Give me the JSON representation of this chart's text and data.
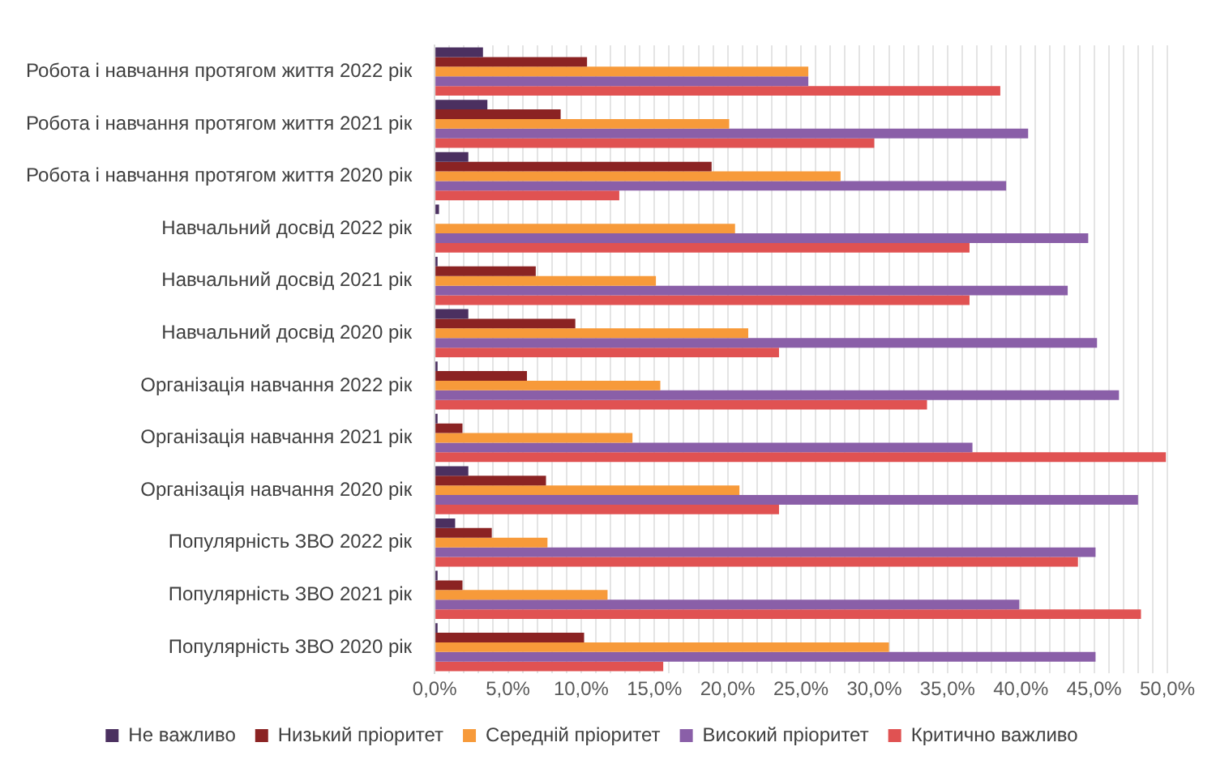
{
  "chart_data": {
    "type": "bar",
    "orientation": "horizontal",
    "categories": [
      "Робота і навчання протягом життя 2022 рік",
      "Робота і навчання протягом життя 2021 рік",
      "Робота і навчання протягом життя 2020 рік",
      "Навчальний досвід 2022 рік",
      "Навчальний досвід 2021 рік",
      "Навчальний досвід 2020 рік",
      "Організація навчання 2022 рік",
      "Організація навчання 2021 рік",
      "Організація навчання 2020 рік",
      "Популярність ЗВО 2022 рік",
      "Популярність ЗВО 2021 рік",
      "Популярність ЗВО 2020 рік"
    ],
    "series": [
      {
        "name": "Не важливо",
        "color": "#4b3060",
        "values": [
          3.3,
          3.6,
          2.3,
          0.3,
          0.2,
          2.3,
          0.2,
          0.2,
          2.3,
          1.4,
          0.2,
          0.2
        ]
      },
      {
        "name": "Низький пріоритет",
        "color": "#8b2323",
        "values": [
          10.4,
          8.6,
          18.9,
          0,
          6.9,
          9.6,
          6.3,
          1.9,
          7.6,
          3.9,
          1.9,
          10.2
        ]
      },
      {
        "name": "Середній пріоритет",
        "color": "#f79a3a",
        "values": [
          25.5,
          20.1,
          27.7,
          20.5,
          15.1,
          21.4,
          15.4,
          13.5,
          20.8,
          7.7,
          11.8,
          31.0
        ]
      },
      {
        "name": "Високий пріоритет",
        "color": "#8a5fa8",
        "values": [
          25.5,
          40.5,
          39.0,
          44.6,
          43.2,
          45.2,
          46.7,
          36.7,
          48.0,
          45.1,
          39.9,
          45.1
        ]
      },
      {
        "name": "Критично важливо",
        "color": "#e05252",
        "values": [
          38.6,
          30.0,
          12.6,
          36.5,
          36.5,
          23.5,
          33.6,
          49.9,
          23.5,
          43.9,
          48.2,
          15.6
        ]
      }
    ],
    "xlim": [
      0,
      50
    ],
    "xticks": [
      {
        "value": 0,
        "label": "0,0%"
      },
      {
        "value": 1,
        "label": null
      },
      {
        "value": 2,
        "label": null
      },
      {
        "value": 3,
        "label": null
      },
      {
        "value": 4,
        "label": null
      },
      {
        "value": 5,
        "label": "5,0%"
      },
      {
        "value": 6,
        "label": null
      },
      {
        "value": 7,
        "label": null
      },
      {
        "value": 8,
        "label": null
      },
      {
        "value": 9,
        "label": null
      },
      {
        "value": 10,
        "label": "10,0%"
      },
      {
        "value": 11,
        "label": null
      },
      {
        "value": 12,
        "label": null
      },
      {
        "value": 13,
        "label": null
      },
      {
        "value": 14,
        "label": null
      },
      {
        "value": 15,
        "label": "15,0%"
      },
      {
        "value": 16,
        "label": null
      },
      {
        "value": 17,
        "label": null
      },
      {
        "value": 18,
        "label": null
      },
      {
        "value": 19,
        "label": null
      },
      {
        "value": 20,
        "label": "20,0%"
      },
      {
        "value": 21,
        "label": null
      },
      {
        "value": 22,
        "label": null
      },
      {
        "value": 23,
        "label": null
      },
      {
        "value": 24,
        "label": null
      },
      {
        "value": 25,
        "label": "25,0%"
      },
      {
        "value": 26,
        "label": null
      },
      {
        "value": 27,
        "label": null
      },
      {
        "value": 28,
        "label": null
      },
      {
        "value": 29,
        "label": null
      },
      {
        "value": 30,
        "label": "30,0%"
      },
      {
        "value": 31,
        "label": null
      },
      {
        "value": 32,
        "label": null
      },
      {
        "value": 33,
        "label": null
      },
      {
        "value": 34,
        "label": null
      },
      {
        "value": 35,
        "label": "35,0%"
      },
      {
        "value": 36,
        "label": null
      },
      {
        "value": 37,
        "label": null
      },
      {
        "value": 38,
        "label": null
      },
      {
        "value": 39,
        "label": null
      },
      {
        "value": 40,
        "label": "40,0%"
      },
      {
        "value": 41,
        "label": null
      },
      {
        "value": 42,
        "label": null
      },
      {
        "value": 43,
        "label": null
      },
      {
        "value": 44,
        "label": null
      },
      {
        "value": 45,
        "label": "45,0%"
      },
      {
        "value": 46,
        "label": null
      },
      {
        "value": 47,
        "label": null
      },
      {
        "value": 48,
        "label": null
      },
      {
        "value": 49,
        "label": null
      },
      {
        "value": 50,
        "label": "50,0%"
      }
    ],
    "grid": "x",
    "legend": "bottom"
  }
}
